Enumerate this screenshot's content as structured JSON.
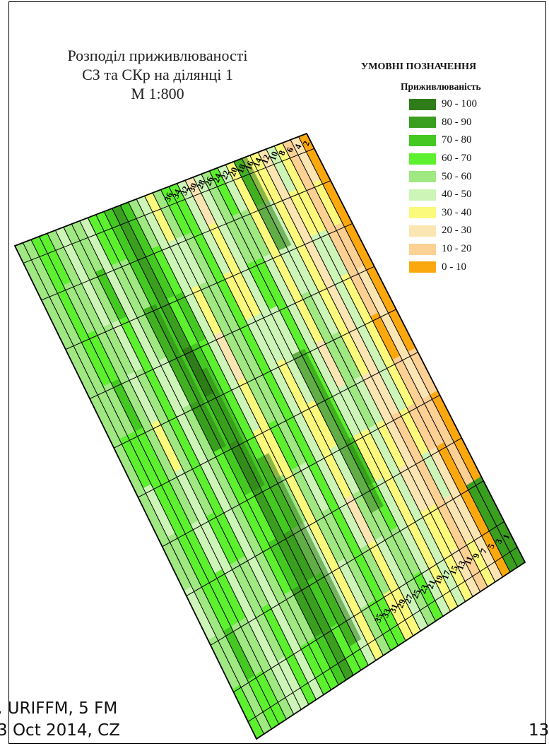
{
  "map": {
    "title_lines": [
      "Розподіл приживлюваності",
      "СЗ та СКр на ділянці 1",
      "М 1:800"
    ],
    "top_row_numbers": [
      "2",
      "4",
      "6",
      "8",
      "10",
      "12",
      "14",
      "16",
      "18",
      "20",
      "22",
      "24",
      "26",
      "28",
      "30",
      "32",
      "34",
      "36"
    ],
    "bottom_row_numbers": [
      "1",
      "3",
      "5",
      "7",
      "9",
      "11",
      "13",
      "15",
      "17",
      "19",
      "21",
      "23",
      "25",
      "27",
      "29",
      "31",
      "33",
      "35"
    ]
  },
  "legend": {
    "heading": "УМОВНІ ПОЗНАЧЕННЯ",
    "subheading": "Приживлюваність",
    "items": [
      {
        "label": "90 - 100",
        "color": "#2e7d18"
      },
      {
        "label": "80 - 90",
        "color": "#3a9e1e"
      },
      {
        "label": "70 - 80",
        "color": "#44c822"
      },
      {
        "label": "60 - 70",
        "color": "#5cf02e"
      },
      {
        "label": "50 - 60",
        "color": "#9fe882"
      },
      {
        "label": "40 - 50",
        "color": "#cdf5b8"
      },
      {
        "label": "30 - 40",
        "color": "#fbfa7c"
      },
      {
        "label": "20 - 30",
        "color": "#fbe5b2"
      },
      {
        "label": "10 - 20",
        "color": "#fdd094"
      },
      {
        "label": "0 - 10",
        "color": "#fba80e"
      }
    ]
  },
  "footer": {
    "line1": ", URIFFM, 5 FM",
    "line2": "3 Oct 2014, CZ",
    "page_fragment": "13"
  }
}
